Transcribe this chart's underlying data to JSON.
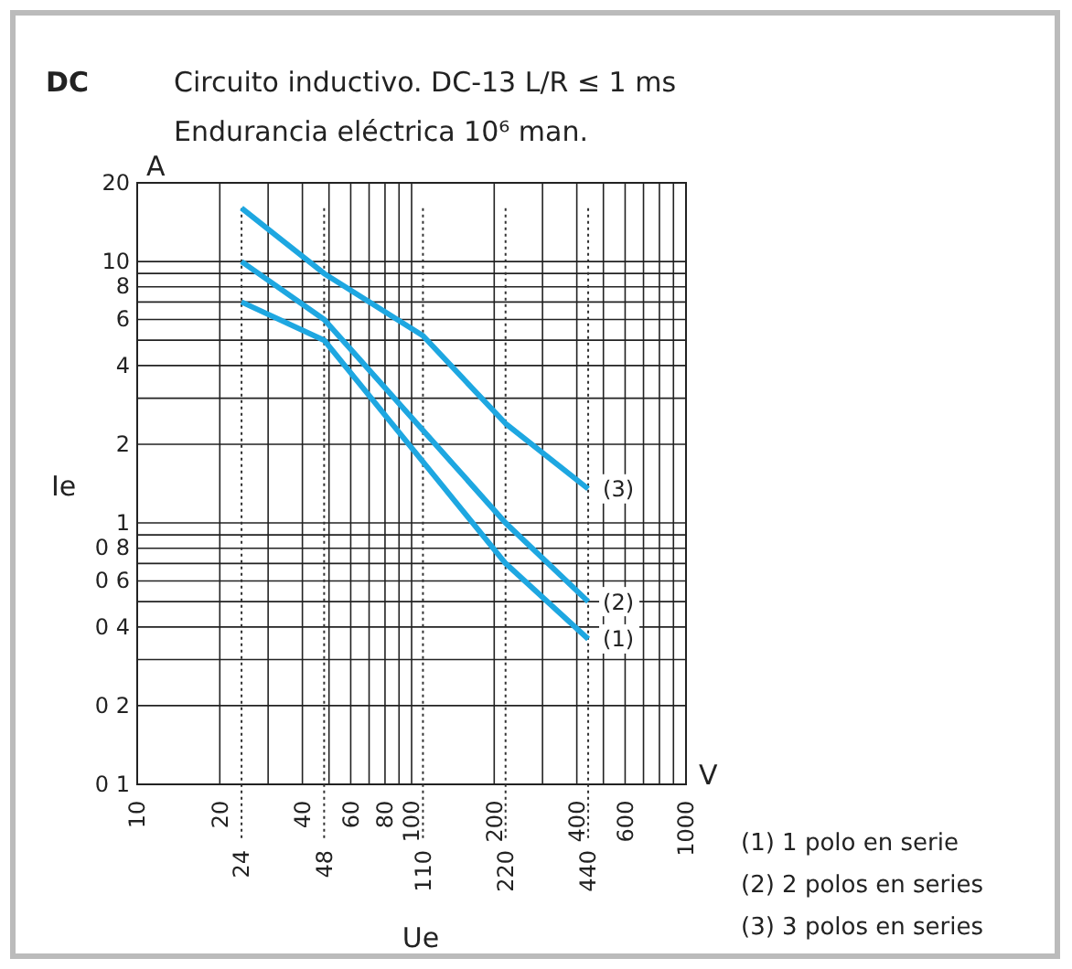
{
  "chart_data": {
    "type": "line",
    "title": "Circuito inductivo. DC-13 L/R ≤ 1 ms",
    "subtitle": "Endurancia eléctrica 10⁶ man.",
    "xlabel": "Ue",
    "ylabel": "Ie",
    "annotations": [
      "DC",
      "A",
      "V",
      "(1) 1 polo en serie",
      "(2) 2 polos en series",
      "(3) 3 polos en series"
    ],
    "log": "xy",
    "grid": true,
    "line_style": "solid",
    "marker": "none",
    "xlim": [
      10,
      1000
    ],
    "ylim": [
      0.1,
      20
    ],
    "xticks": [
      10,
      20,
      {
        "value": 30,
        "label": null
      },
      40,
      {
        "value": 50,
        "label": null
      },
      60,
      {
        "value": 70,
        "label": null
      },
      80,
      {
        "value": 90,
        "label": null
      },
      100,
      200,
      {
        "value": 300,
        "label": null
      },
      400,
      {
        "value": 500,
        "label": null
      },
      600,
      {
        "value": 700,
        "label": null
      },
      {
        "value": 800,
        "label": null
      },
      {
        "value": 900,
        "label": null
      },
      1000
    ],
    "yticks": [
      {
        "value": 0.1,
        "label": "0 1"
      },
      {
        "value": 0.2,
        "label": "0 2"
      },
      {
        "value": 0.3,
        "label": null
      },
      {
        "value": 0.4,
        "label": "0 4"
      },
      {
        "value": 0.5,
        "label": null
      },
      {
        "value": 0.6,
        "label": "0 6"
      },
      {
        "value": 0.7,
        "label": null
      },
      {
        "value": 0.8,
        "label": "0 8"
      },
      {
        "value": 0.9,
        "label": null
      },
      1,
      2,
      {
        "value": 3,
        "label": null
      },
      4,
      {
        "value": 5,
        "label": null
      },
      6,
      {
        "value": 7,
        "label": null
      },
      8,
      {
        "value": 9,
        "label": null
      },
      10,
      20
    ],
    "ref_lines": [
      {
        "axis": "x",
        "value": 24,
        "label": "24",
        "line_style": "dotted"
      },
      {
        "axis": "x",
        "value": 48,
        "label": "48",
        "line_style": "dotted"
      },
      {
        "axis": "x",
        "value": 110,
        "label": "110",
        "line_style": "dotted"
      },
      {
        "axis": "x",
        "value": 220,
        "label": "220",
        "line_style": "dotted"
      },
      {
        "axis": "x",
        "value": 440,
        "label": "440",
        "line_style": "dotted"
      }
    ],
    "series": [
      {
        "name": "(1)",
        "color": "#1ea7e1",
        "x": [
          24,
          48,
          220,
          440
        ],
        "values": [
          7,
          5,
          0.7,
          0.36
        ]
      },
      {
        "name": "(2)",
        "color": "#1ea7e1",
        "x": [
          24,
          48,
          220,
          440
        ],
        "values": [
          10,
          6,
          1,
          0.5
        ]
      },
      {
        "name": "(3)",
        "color": "#1ea7e1",
        "x": [
          24,
          48,
          110,
          220,
          440
        ],
        "values": [
          16,
          9,
          5.2,
          2.4,
          1.35
        ]
      }
    ]
  }
}
